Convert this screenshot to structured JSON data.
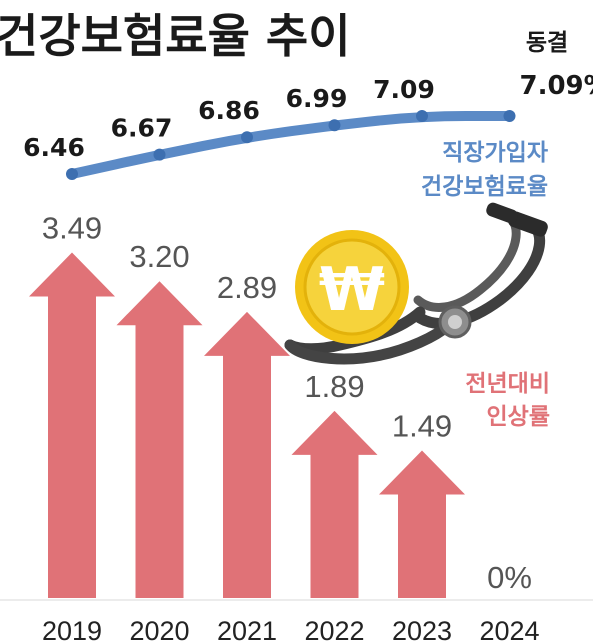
{
  "chart_data": {
    "type": "bar",
    "title": "건강보험료율 추이",
    "categories": [
      "2019",
      "2020",
      "2021",
      "2022",
      "2023",
      "2024"
    ],
    "series": [
      {
        "name": "직장가입자 건강보험료율",
        "name_lines": [
          "직장가입자",
          "건강보험료율"
        ],
        "type": "line",
        "values": [
          6.46,
          6.67,
          6.86,
          6.99,
          7.09,
          7.09
        ],
        "value_labels": [
          "6.46",
          "6.67",
          "6.86",
          "6.99",
          "7.09",
          "7.09%"
        ]
      },
      {
        "name": "전년대비 인상률",
        "name_lines": [
          "전년대비",
          "인상률"
        ],
        "type": "bar",
        "values": [
          3.49,
          3.2,
          2.89,
          1.89,
          1.49,
          0
        ],
        "value_labels": [
          "3.49",
          "3.20",
          "2.89",
          "1.89",
          "1.49",
          "0%"
        ]
      }
    ],
    "annotations": [
      {
        "category": "2024",
        "text": "동결"
      }
    ],
    "grid": false
  },
  "colors": {
    "line": "#5b8ac6",
    "bar": "#e07277",
    "coin": "#f2c316",
    "stethoscope": "#4a4a4a"
  },
  "icons": [
    "won-coin-icon",
    "stethoscope-icon"
  ]
}
